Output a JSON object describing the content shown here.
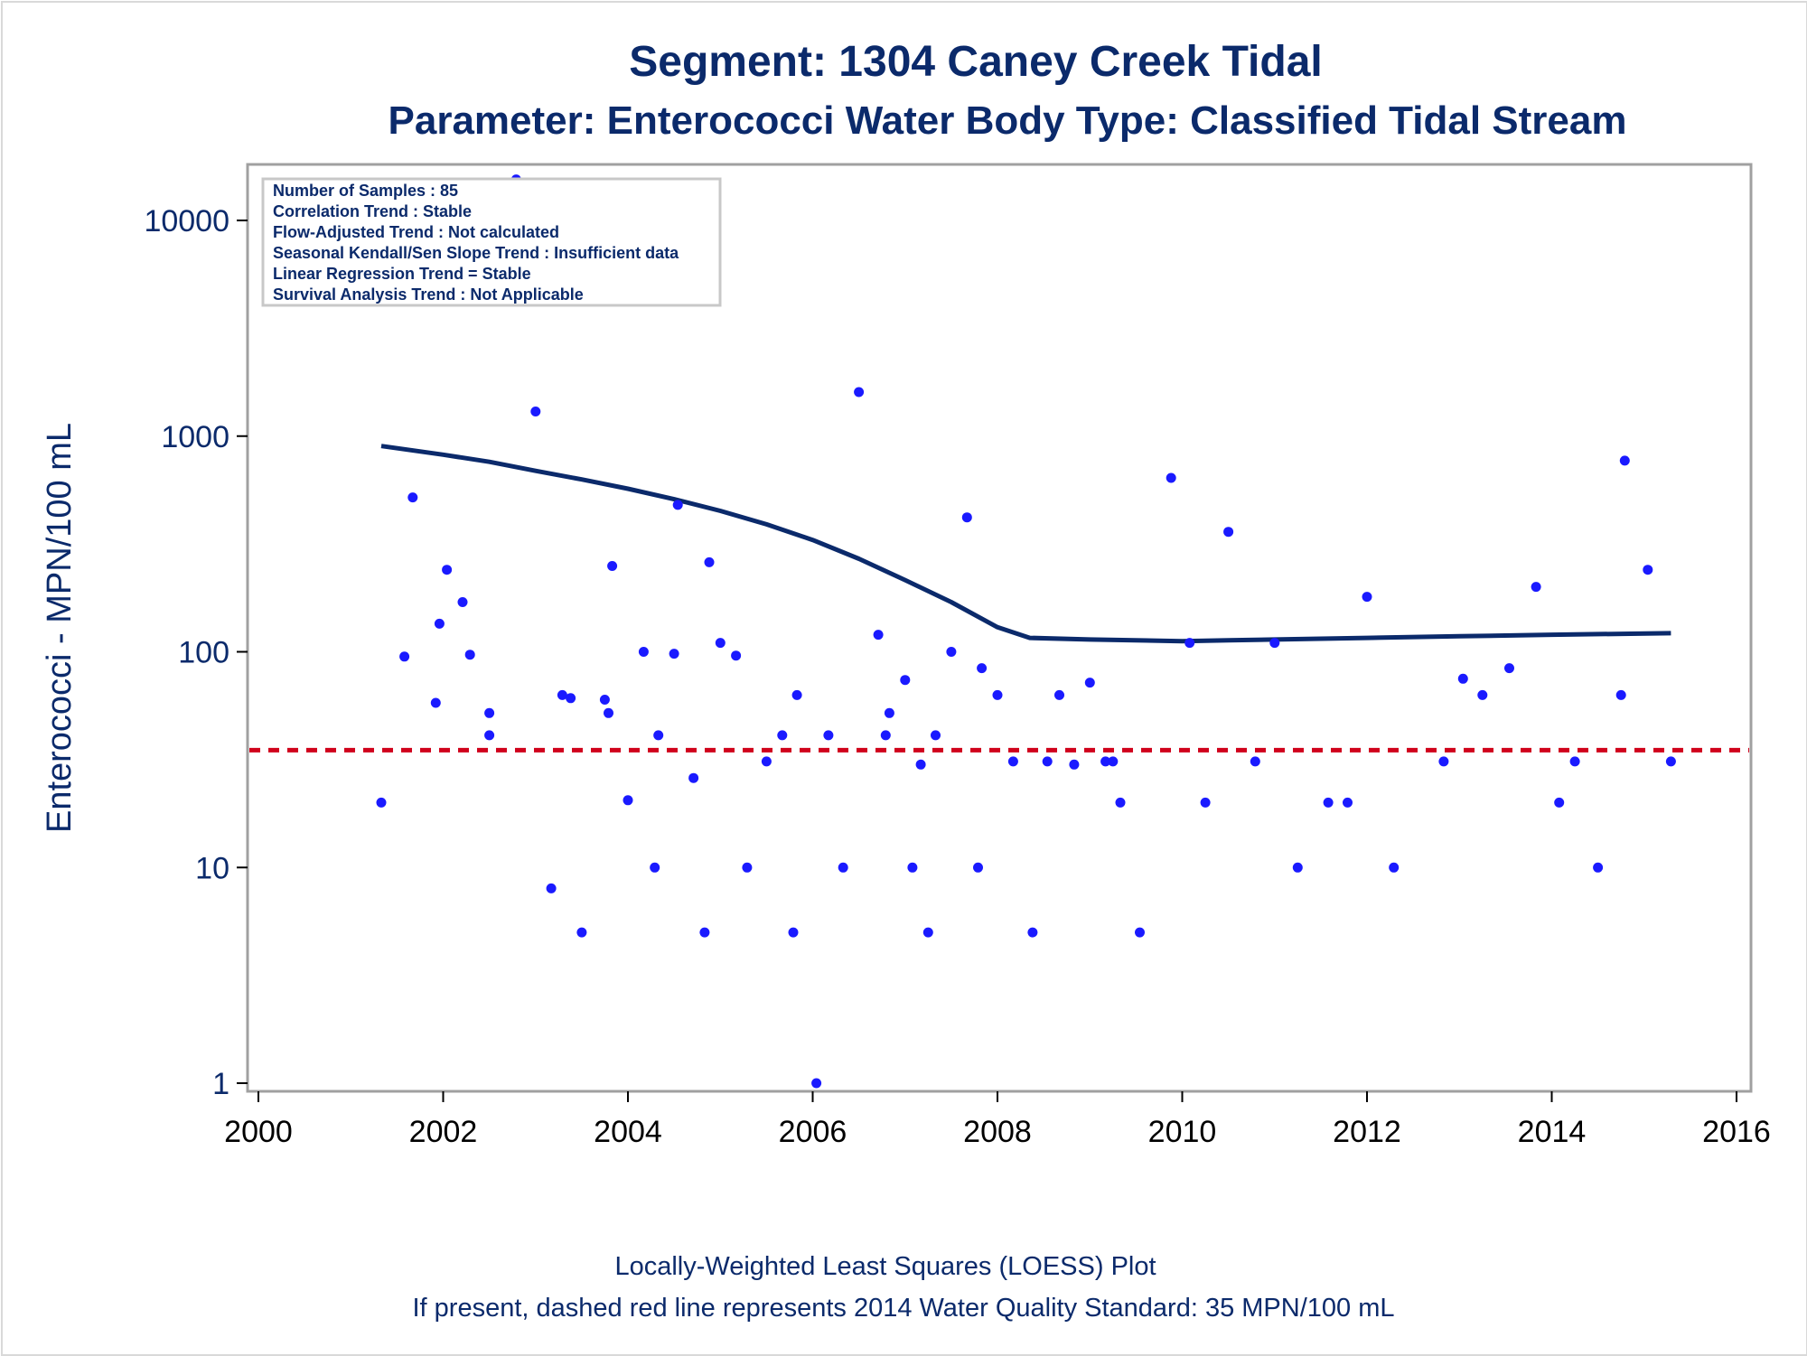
{
  "colors": {
    "points": "#1a1aff",
    "loess": "#0b2a6b",
    "standard_line": "#d0021b",
    "text": "#0b2a6b",
    "frame": "#a0a0a0"
  },
  "chart_data": {
    "type": "scatter",
    "title": "Segment: 1304  Caney Creek Tidal",
    "subtitle": "Parameter: Enterococci   Water Body Type: Classified Tidal Stream",
    "xlabel": "",
    "ylabel": "Enterococci - MPN/100 mL",
    "yscale": "log",
    "xlim": [
      2000,
      2016
    ],
    "ylim": [
      0.82,
      17000
    ],
    "x_ticks": [
      2000,
      2002,
      2004,
      2006,
      2008,
      2010,
      2012,
      2014,
      2016
    ],
    "y_ticks": [
      1,
      10,
      100,
      1000,
      10000
    ],
    "grid": false,
    "stats_box": [
      "Number of Samples : 85",
      "Correlation Trend : Stable",
      "Flow-Adjusted Trend : Not calculated",
      "Seasonal Kendall/Sen Slope Trend : Insufficient data",
      "Linear Regression Trend = Stable",
      "Survival Analysis Trend : Not Applicable"
    ],
    "standard_line": {
      "y": 35,
      "style": "dashed"
    },
    "footnotes": [
      "Locally-Weighted Least Squares (LOESS) Plot",
      "If present, dashed red line represents 2014 Water Quality Standard: 35 MPN/100 mL"
    ],
    "points": [
      {
        "x": 2001.33,
        "y": 20
      },
      {
        "x": 2001.58,
        "y": 95
      },
      {
        "x": 2001.67,
        "y": 520
      },
      {
        "x": 2001.92,
        "y": 58
      },
      {
        "x": 2001.96,
        "y": 135
      },
      {
        "x": 2002.04,
        "y": 240
      },
      {
        "x": 2002.21,
        "y": 170
      },
      {
        "x": 2002.29,
        "y": 97
      },
      {
        "x": 2002.5,
        "y": 52
      },
      {
        "x": 2002.5,
        "y": 41
      },
      {
        "x": 2002.79,
        "y": 15500
      },
      {
        "x": 2003.0,
        "y": 1300
      },
      {
        "x": 2003.17,
        "y": 8
      },
      {
        "x": 2003.29,
        "y": 63
      },
      {
        "x": 2003.38,
        "y": 61
      },
      {
        "x": 2003.5,
        "y": 5
      },
      {
        "x": 2003.75,
        "y": 60
      },
      {
        "x": 2003.79,
        "y": 52
      },
      {
        "x": 2003.83,
        "y": 250
      },
      {
        "x": 2004.0,
        "y": 20.5
      },
      {
        "x": 2004.17,
        "y": 100
      },
      {
        "x": 2004.29,
        "y": 10
      },
      {
        "x": 2004.33,
        "y": 41
      },
      {
        "x": 2004.5,
        "y": 98
      },
      {
        "x": 2004.54,
        "y": 480
      },
      {
        "x": 2004.71,
        "y": 26
      },
      {
        "x": 2004.83,
        "y": 5
      },
      {
        "x": 2004.88,
        "y": 260
      },
      {
        "x": 2005.0,
        "y": 110
      },
      {
        "x": 2005.17,
        "y": 96
      },
      {
        "x": 2005.29,
        "y": 10
      },
      {
        "x": 2005.5,
        "y": 31
      },
      {
        "x": 2005.67,
        "y": 41
      },
      {
        "x": 2005.79,
        "y": 5
      },
      {
        "x": 2005.83,
        "y": 63
      },
      {
        "x": 2006.04,
        "y": 1
      },
      {
        "x": 2006.17,
        "y": 41
      },
      {
        "x": 2006.33,
        "y": 10
      },
      {
        "x": 2006.5,
        "y": 1600
      },
      {
        "x": 2006.71,
        "y": 120
      },
      {
        "x": 2006.79,
        "y": 41
      },
      {
        "x": 2006.83,
        "y": 52
      },
      {
        "x": 2007.0,
        "y": 74
      },
      {
        "x": 2007.08,
        "y": 10
      },
      {
        "x": 2007.17,
        "y": 30
      },
      {
        "x": 2007.25,
        "y": 5
      },
      {
        "x": 2007.33,
        "y": 41
      },
      {
        "x": 2007.5,
        "y": 100
      },
      {
        "x": 2007.67,
        "y": 420
      },
      {
        "x": 2007.79,
        "y": 10
      },
      {
        "x": 2007.83,
        "y": 84
      },
      {
        "x": 2008.0,
        "y": 63
      },
      {
        "x": 2008.17,
        "y": 31
      },
      {
        "x": 2008.38,
        "y": 5
      },
      {
        "x": 2008.54,
        "y": 31
      },
      {
        "x": 2008.67,
        "y": 63
      },
      {
        "x": 2008.83,
        "y": 30
      },
      {
        "x": 2009.0,
        "y": 72
      },
      {
        "x": 2009.17,
        "y": 31
      },
      {
        "x": 2009.25,
        "y": 31
      },
      {
        "x": 2009.33,
        "y": 20
      },
      {
        "x": 2009.54,
        "y": 5
      },
      {
        "x": 2009.88,
        "y": 640
      },
      {
        "x": 2010.08,
        "y": 110
      },
      {
        "x": 2010.25,
        "y": 20
      },
      {
        "x": 2010.5,
        "y": 360
      },
      {
        "x": 2010.79,
        "y": 31
      },
      {
        "x": 2011.0,
        "y": 110
      },
      {
        "x": 2011.25,
        "y": 10
      },
      {
        "x": 2011.58,
        "y": 20
      },
      {
        "x": 2011.79,
        "y": 20
      },
      {
        "x": 2012.0,
        "y": 180
      },
      {
        "x": 2012.29,
        "y": 10
      },
      {
        "x": 2012.83,
        "y": 31
      },
      {
        "x": 2013.04,
        "y": 75
      },
      {
        "x": 2013.25,
        "y": 63
      },
      {
        "x": 2013.54,
        "y": 84
      },
      {
        "x": 2013.83,
        "y": 200
      },
      {
        "x": 2014.08,
        "y": 20
      },
      {
        "x": 2014.25,
        "y": 31
      },
      {
        "x": 2014.5,
        "y": 10
      },
      {
        "x": 2014.75,
        "y": 63
      },
      {
        "x": 2014.79,
        "y": 770
      },
      {
        "x": 2015.04,
        "y": 240
      },
      {
        "x": 2015.29,
        "y": 31
      }
    ],
    "loess": [
      {
        "x": 2001.33,
        "y": 900
      },
      {
        "x": 2002.0,
        "y": 820
      },
      {
        "x": 2002.5,
        "y": 760
      },
      {
        "x": 2003.0,
        "y": 690
      },
      {
        "x": 2003.5,
        "y": 630
      },
      {
        "x": 2004.0,
        "y": 570
      },
      {
        "x": 2004.5,
        "y": 510
      },
      {
        "x": 2005.0,
        "y": 450
      },
      {
        "x": 2005.5,
        "y": 390
      },
      {
        "x": 2006.0,
        "y": 330
      },
      {
        "x": 2006.5,
        "y": 270
      },
      {
        "x": 2007.0,
        "y": 215
      },
      {
        "x": 2007.5,
        "y": 170
      },
      {
        "x": 2008.0,
        "y": 130
      },
      {
        "x": 2008.35,
        "y": 116
      },
      {
        "x": 2009.0,
        "y": 114
      },
      {
        "x": 2010.0,
        "y": 112
      },
      {
        "x": 2010.5,
        "y": 113
      },
      {
        "x": 2011.0,
        "y": 114
      },
      {
        "x": 2012.0,
        "y": 116
      },
      {
        "x": 2013.0,
        "y": 118
      },
      {
        "x": 2014.0,
        "y": 120
      },
      {
        "x": 2015.29,
        "y": 122
      }
    ]
  }
}
